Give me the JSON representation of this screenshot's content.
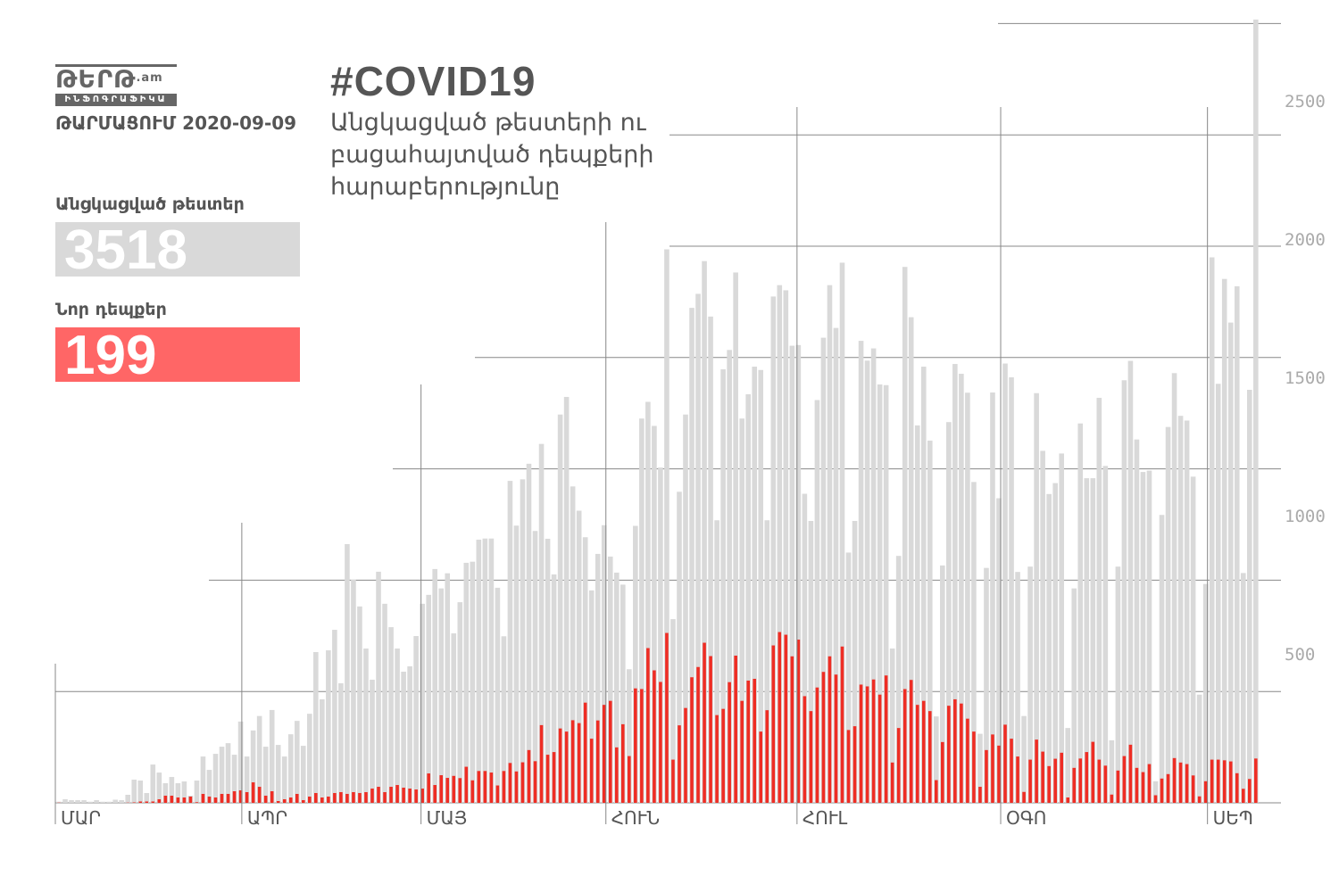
{
  "logo": {
    "word": "ԹԵՐԹ",
    "suffix": ".am",
    "subtitle": "ԻՆՖՈԳՐԱՖԻԿԱ"
  },
  "date_line": "ԹԱՐՄԱՑՈՒՄ 2020-09-09",
  "title": "#COVID19",
  "subtitle": "Անցկացված թեստերի ու բացահայտված դեպքերի հարաբերությունը",
  "stats": {
    "tests_label": "Անցկացված թեստեր",
    "tests_value": "3518",
    "cases_label": "Նոր դեպքեր",
    "cases_value": "199"
  },
  "colors": {
    "tests": "#d9d9d9",
    "cases": "#ee2d24",
    "cases_box": "#ff6666",
    "tests_box": "#d9d9d9"
  },
  "chart_data": {
    "type": "bar",
    "title": "#COVID19",
    "xlabel": "",
    "ylabel": "",
    "ylim": [
      0,
      3518
    ],
    "grid": true,
    "y_tick_labels": [
      "500",
      "1000",
      "1500",
      "2000",
      "2500"
    ],
    "gridline_values": [
      500,
      1000,
      1500,
      2000,
      2500,
      3000,
      3500
    ],
    "month_ticks": [
      {
        "label": "ՄԱՐ",
        "index": -0.5
      },
      {
        "label": "ԱՊՐ",
        "index": 28.9
      },
      {
        "label": "ՄԱՅ",
        "index": 57.5
      },
      {
        "label": "ՀՈՒՆ",
        "index": 87
      },
      {
        "label": "ՀՈՒԼ",
        "index": 117.5
      },
      {
        "label": "ՕԳՈ",
        "index": 150
      },
      {
        "label": "ՍԵՊ",
        "index": 183
      }
    ],
    "series": [
      {
        "name": "Անցկացված թեստեր",
        "values": [
          5,
          16,
          12,
          12,
          12,
          5,
          12,
          5,
          5,
          14,
          12,
          36,
          104,
          100,
          44,
          172,
          136,
          88,
          116,
          88,
          96,
          32,
          100,
          208,
          148,
          220,
          252,
          268,
          216,
          365,
          208,
          325,
          390,
          252,
          417,
          260,
          208,
          308,
          368,
          256,
          400,
          677,
          465,
          685,
          777,
          537,
          1162,
          1002,
          882,
          693,
          553,
          1038,
          894,
          789,
          693,
          589,
          613,
          749,
          894,
          934,
          1050,
          963,
          1031,
          761,
          901,
          1078,
          1083,
          1182,
          1187,
          1187,
          966,
          748,
          1446,
          1245,
          1453,
          1523,
          1221,
          1612,
          1186,
          1026,
          1744,
          1823,
          1421,
          1312,
          1193,
          954,
          1118,
          1247,
          1106,
          1034,
          980,
          600,
          1244,
          1726,
          1801,
          1693,
          1506,
          2486,
          825,
          1397,
          1744,
          2223,
          2286,
          2433,
          2184,
          1269,
          1947,
          2034,
          2382,
          1726,
          1835,
          1959,
          1944,
          1269,
          2274,
          2325,
          2302,
          2053,
          2056,
          1388,
          1266,
          1809,
          2089,
          2325,
          2133,
          2426,
          1124,
          1266,
          2075,
          1986,
          2041,
          1879,
          1876,
          693,
          1109,
          2407,
          2181,
          1695,
          1959,
          1627,
          388,
          1066,
          1710,
          1971,
          1927,
          1842,
          1441,
          310,
          1055,
          1843,
          1368,
          1973,
          1911,
          1037,
          390,
          1061,
          1840,
          1581,
          1387,
          1436,
          1569,
          336,
          963,
          1704,
          1458,
          1458,
          1819,
          1513,
          281,
          1061,
          1898,
          1985,
          1632,
          1486,
          1492,
          97,
          1293,
          1688,
          1930,
          1738,
          1717,
          1465,
          486,
          983,
          2450,
          1882,
          2353,
          2157,
          2320,
          1032,
          1855,
          3518
        ]
      },
      {
        "name": "Նոր դեպքեր",
        "values": [
          1,
          0,
          0,
          0,
          0,
          0,
          0,
          0,
          0,
          0,
          0,
          1,
          2,
          6,
          6,
          6,
          16,
          32,
          32,
          24,
          24,
          28,
          3,
          40,
          28,
          24,
          40,
          40,
          52,
          56,
          48,
          92,
          72,
          32,
          52,
          8,
          16,
          24,
          40,
          12,
          28,
          44,
          24,
          28,
          44,
          48,
          40,
          48,
          44,
          48,
          64,
          72,
          48,
          72,
          80,
          68,
          64,
          60,
          64,
          132,
          80,
          124,
          112,
          121,
          111,
          162,
          101,
          143,
          143,
          136,
          78,
          143,
          179,
          141,
          182,
          237,
          187,
          349,
          216,
          228,
          334,
          320,
          371,
          358,
          450,
          288,
          370,
          440,
          458,
          249,
          353,
          210,
          514,
          511,
          695,
          595,
          543,
          763,
          194,
          348,
          426,
          564,
          610,
          719,
          659,
          394,
          422,
          542,
          661,
          458,
          549,
          557,
          320,
          416,
          707,
          767,
          755,
          658,
          733,
          479,
          412,
          518,
          588,
          658,
          576,
          702,
          327,
          344,
          531,
          523,
          554,
          486,
          572,
          181,
          336,
          511,
          552,
          440,
          458,
          412,
          102,
          273,
          436,
          465,
          446,
          378,
          320,
          72,
          237,
          307,
          257,
          351,
          288,
          208,
          49,
          194,
          284,
          230,
          165,
          198,
          225,
          24,
          157,
          199,
          228,
          274,
          194,
          167,
          37,
          145,
          210,
          261,
          157,
          138,
          174,
          34,
          109,
          129,
          201,
          181,
          174,
          123,
          29,
          97,
          194,
          194,
          191,
          186,
          133,
          63,
          107,
          199
        ]
      }
    ]
  }
}
